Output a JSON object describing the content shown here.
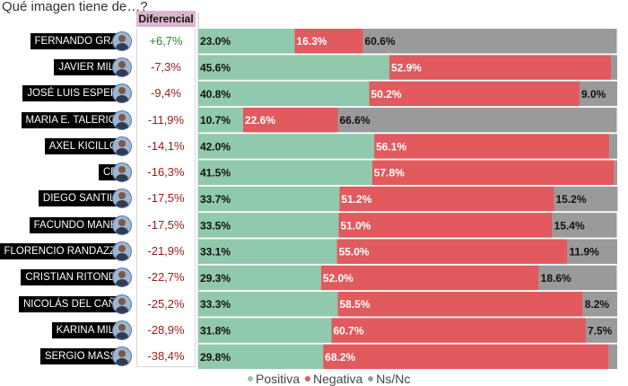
{
  "title": "Qué imagen tiene de…?",
  "diff_header": "Diferencial",
  "colors": {
    "positiva": "#90c9ab",
    "negativa": "#e05a5e",
    "nsnc": "#9a9a9a",
    "diff_positive": "#2e7d32",
    "diff_negative": "#9b1a1a"
  },
  "legend": [
    {
      "label": "Positiva",
      "color": "#90c9ab"
    },
    {
      "label": "Negativa",
      "color": "#e05a5e"
    },
    {
      "label": "Ns/Nc",
      "color": "#9a9a9a"
    }
  ],
  "chart_data": {
    "type": "bar",
    "stacked": true,
    "orientation": "horizontal",
    "title": "Qué imagen tiene de…?",
    "xlim": [
      0,
      100
    ],
    "categories": [
      "FERNANDO GRAY",
      "JAVIER MILEI",
      "JOSÉ LUIS ESPERT",
      "MARIA E. TALERICO",
      "AXEL KICILLOF",
      "CFK",
      "DIEGO SANTILLI",
      "FACUNDO MANES",
      "FLORENCIO RANDAZZO",
      "CRISTIAN RITONDO",
      "NICOLÁS DEL CAÑO",
      "KARINA MILEI",
      "SERGIO MASSA"
    ],
    "diferencial": [
      "+6,7%",
      "-7,3%",
      "-9,4%",
      "-11,9%",
      "-14,1%",
      "-16,3%",
      "-17,5%",
      "-17,5%",
      "-21,9%",
      "-22,7%",
      "-25,2%",
      "-28,9%",
      "-38,4%"
    ],
    "series": [
      {
        "name": "Positiva",
        "values": [
          23.0,
          45.6,
          40.8,
          10.7,
          42.0,
          41.5,
          33.7,
          33.5,
          33.1,
          29.3,
          33.3,
          31.8,
          29.8
        ],
        "labels": [
          "23.0%",
          "45.6%",
          "40.8%",
          "10.7%",
          "42.0%",
          "41.5%",
          "33.7%",
          "33.5%",
          "33.1%",
          "29.3%",
          "33.3%",
          "31.8%",
          "29.8%"
        ]
      },
      {
        "name": "Negativa",
        "values": [
          16.3,
          52.9,
          50.2,
          22.6,
          56.1,
          57.8,
          51.2,
          51.0,
          55.0,
          52.0,
          58.5,
          60.7,
          68.2
        ],
        "labels": [
          "16.3%",
          "52.9%",
          "50.2%",
          "22.6%",
          "56.1%",
          "57.8%",
          "51.2%",
          "51.0%",
          "55.0%",
          "52.0%",
          "58.5%",
          "60.7%",
          "68.2%"
        ]
      },
      {
        "name": "Ns/Nc",
        "values": [
          60.6,
          1.5,
          9.0,
          66.6,
          1.9,
          0.7,
          15.2,
          15.4,
          11.9,
          18.6,
          8.2,
          7.5,
          2.0
        ],
        "labels": [
          "60.6%",
          "",
          "9.0%",
          "66.6%",
          "",
          "",
          "15.2%",
          "15.4%",
          "11.9%",
          "18.6%",
          "8.2%",
          "7.5%",
          ""
        ]
      }
    ]
  }
}
